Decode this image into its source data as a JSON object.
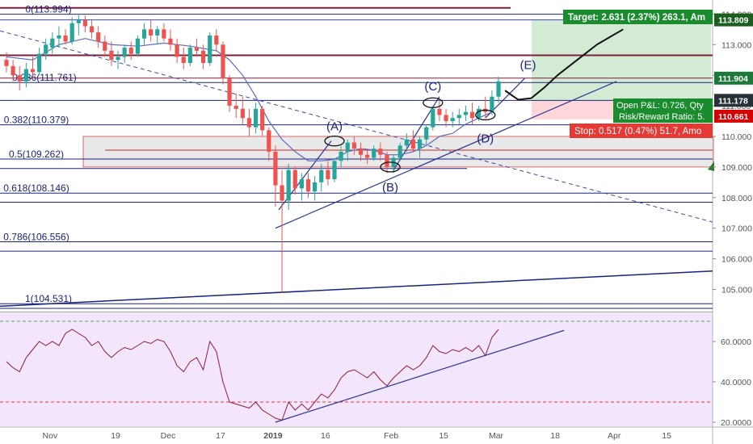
{
  "chart_data": [
    {
      "type": "candlestick",
      "name_shown": "",
      "price_axis": {
        "range": [
          104.3,
          114.3
        ],
        "ticks": [
          105.0,
          106.0,
          107.0,
          108.0,
          109.0,
          110.0,
          111.0,
          112.0,
          113.0,
          114.0
        ],
        "tick_labels": [
          "105.000",
          "106.000",
          "107.000",
          "108.000",
          "109.000",
          "110.000",
          "111.000",
          "112.000",
          "113.000",
          "114.000"
        ]
      },
      "time_axis": {
        "range": [
          0,
          108
        ],
        "ticks": [
          {
            "t": 7,
            "label": "Nov"
          },
          {
            "t": 17,
            "label": "19"
          },
          {
            "t": 25,
            "label": "Dec"
          },
          {
            "t": 33,
            "label": "17"
          },
          {
            "t": 41,
            "label": "2019"
          },
          {
            "t": 49,
            "label": "16"
          },
          {
            "t": 59,
            "label": "Feb"
          },
          {
            "t": 67,
            "label": "15"
          },
          {
            "t": 75,
            "label": "Mar"
          },
          {
            "t": 84,
            "label": "18"
          },
          {
            "t": 93,
            "label": "Apr"
          },
          {
            "t": 101,
            "label": "15"
          }
        ]
      },
      "fib_levels": [
        {
          "ratio": "0",
          "price": 113.994,
          "label": "0(113.994)"
        },
        {
          "ratio": "0.236",
          "price": 111.761,
          "label": "0.236(111.761)"
        },
        {
          "ratio": "0.382",
          "price": 110.379,
          "label": "0.382(110.379)"
        },
        {
          "ratio": "0.5",
          "price": 109.262,
          "label": "0.5(109.262)"
        },
        {
          "ratio": "0.618",
          "price": 108.146,
          "label": "0.618(108.146)"
        },
        {
          "ratio": "0.786",
          "price": 106.556,
          "label": "0.786(106.556)"
        },
        {
          "ratio": "1",
          "price": 104.531,
          "label": "1(104.531)"
        }
      ],
      "wave_labels": [
        "(A)",
        "(B)",
        "(C)",
        "(D)",
        "(E)"
      ],
      "price_tags": [
        {
          "label": "113.809",
          "price": 113.809,
          "color": "#1b5e20"
        },
        {
          "label": "111.904",
          "price": 111.904,
          "color": "#1b7a3a"
        },
        {
          "label": "111.178",
          "price": 111.178,
          "color": "#263238"
        },
        {
          "label": "110.661",
          "price": 110.661,
          "color": "#d50000"
        }
      ],
      "position": {
        "target_text": "Target: 2.631 (2.37%) 263.1, Am",
        "open_pnl_text": "Open P&L: 0.726, Qty",
        "risk_reward_text": "Risk/Reward Ratio: 5.",
        "stop_text": "Stop: 0.517 (0.47%) 51.7, Amo",
        "entry_price": 111.178,
        "target_price": 113.809,
        "stop_price": 110.661
      },
      "candles": [
        [
          0,
          112.5,
          112.75,
          112.1,
          112.3
        ],
        [
          1,
          112.3,
          112.5,
          111.8,
          112.0
        ],
        [
          2,
          112.0,
          112.3,
          111.5,
          111.8
        ],
        [
          3,
          111.8,
          112.4,
          111.6,
          112.2
        ],
        [
          4,
          112.2,
          112.6,
          111.9,
          112.1
        ],
        [
          5,
          112.1,
          112.9,
          112.0,
          112.7
        ],
        [
          6,
          112.7,
          113.2,
          112.5,
          113.0
        ],
        [
          7,
          112.9,
          113.4,
          112.7,
          113.2
        ],
        [
          8,
          113.2,
          113.6,
          112.9,
          113.3
        ],
        [
          9,
          113.3,
          113.5,
          113.0,
          113.1
        ],
        [
          10,
          113.1,
          113.9,
          113.0,
          113.7
        ],
        [
          11,
          113.7,
          114.0,
          113.3,
          113.8
        ],
        [
          12,
          113.8,
          113.95,
          113.4,
          113.6
        ],
        [
          13,
          113.6,
          113.8,
          113.2,
          113.4
        ],
        [
          14,
          113.4,
          113.6,
          112.9,
          113.1
        ],
        [
          15,
          113.1,
          113.3,
          112.6,
          112.8
        ],
        [
          16,
          112.8,
          113.1,
          112.3,
          112.5
        ],
        [
          17,
          112.5,
          112.8,
          112.2,
          112.6
        ],
        [
          18,
          112.6,
          113.0,
          112.4,
          112.9
        ],
        [
          19,
          112.9,
          113.1,
          112.5,
          112.7
        ],
        [
          20,
          112.7,
          113.3,
          112.6,
          113.2
        ],
        [
          21,
          113.2,
          113.7,
          113.0,
          113.5
        ],
        [
          22,
          113.5,
          113.8,
          113.1,
          113.3
        ],
        [
          23,
          113.3,
          113.6,
          113.0,
          113.5
        ],
        [
          24,
          113.5,
          113.7,
          113.1,
          113.2
        ],
        [
          25,
          113.2,
          113.5,
          112.8,
          113.0
        ],
        [
          26,
          113.0,
          113.2,
          112.4,
          112.6
        ],
        [
          27,
          112.6,
          112.9,
          112.2,
          112.4
        ],
        [
          28,
          112.4,
          113.0,
          112.3,
          112.9
        ],
        [
          29,
          112.9,
          113.2,
          112.6,
          112.8
        ],
        [
          30,
          112.8,
          113.0,
          112.2,
          112.4
        ],
        [
          31,
          112.4,
          113.4,
          112.3,
          113.3
        ],
        [
          32,
          113.3,
          113.5,
          112.8,
          113.0
        ],
        [
          33,
          113.0,
          113.1,
          111.7,
          111.9
        ],
        [
          34,
          111.9,
          112.0,
          110.8,
          111.0
        ],
        [
          35,
          111.0,
          111.4,
          110.6,
          110.9
        ],
        [
          36,
          110.9,
          111.3,
          110.4,
          110.6
        ],
        [
          37,
          110.6,
          110.9,
          110.0,
          110.3
        ],
        [
          38,
          110.3,
          111.1,
          110.1,
          110.9
        ],
        [
          39,
          110.9,
          111.0,
          110.0,
          110.2
        ],
        [
          40,
          110.2,
          110.3,
          109.2,
          109.5
        ],
        [
          41,
          109.5,
          109.7,
          107.7,
          108.4
        ],
        [
          42,
          108.4,
          108.9,
          104.9,
          107.9
        ],
        [
          43,
          107.9,
          109.1,
          107.6,
          108.9
        ],
        [
          44,
          108.9,
          109.0,
          108.1,
          108.3
        ],
        [
          45,
          108.3,
          108.8,
          107.9,
          108.6
        ],
        [
          46,
          108.6,
          108.8,
          108.0,
          108.2
        ],
        [
          47,
          108.2,
          108.7,
          107.9,
          108.5
        ],
        [
          48,
          108.5,
          109.1,
          108.2,
          108.9
        ],
        [
          49,
          108.9,
          109.2,
          108.4,
          108.6
        ],
        [
          50,
          108.6,
          109.3,
          108.5,
          109.2
        ],
        [
          51,
          109.2,
          109.7,
          109.0,
          109.5
        ],
        [
          52,
          109.5,
          109.9,
          109.2,
          109.8
        ],
        [
          53,
          109.8,
          110.0,
          109.4,
          109.6
        ],
        [
          54,
          109.6,
          109.8,
          109.2,
          109.4
        ],
        [
          55,
          109.4,
          109.6,
          109.1,
          109.3
        ],
        [
          56,
          109.3,
          109.7,
          109.2,
          109.6
        ],
        [
          57,
          109.6,
          109.8,
          109.2,
          109.4
        ],
        [
          58,
          109.4,
          109.5,
          108.8,
          109.0
        ],
        [
          59,
          109.0,
          109.4,
          108.8,
          109.3
        ],
        [
          60,
          109.3,
          109.8,
          109.2,
          109.7
        ],
        [
          61,
          109.7,
          110.1,
          109.5,
          109.9
        ],
        [
          62,
          109.9,
          110.2,
          109.5,
          109.6
        ],
        [
          63,
          109.6,
          110.0,
          109.3,
          109.9
        ],
        [
          64,
          109.9,
          110.4,
          109.7,
          110.3
        ],
        [
          65,
          110.3,
          111.0,
          110.2,
          110.9
        ],
        [
          66,
          110.9,
          111.2,
          110.5,
          110.7
        ],
        [
          67,
          110.7,
          110.9,
          110.3,
          110.5
        ],
        [
          68,
          110.5,
          110.8,
          110.3,
          110.6
        ],
        [
          69,
          110.6,
          110.9,
          110.4,
          110.7
        ],
        [
          70,
          110.7,
          111.0,
          110.5,
          110.8
        ],
        [
          71,
          110.8,
          111.1,
          110.4,
          110.6
        ],
        [
          72,
          110.6,
          111.0,
          110.5,
          110.9
        ],
        [
          73,
          110.9,
          111.3,
          110.6,
          110.8
        ],
        [
          74,
          110.8,
          111.5,
          110.7,
          111.3
        ],
        [
          75,
          111.3,
          111.95,
          111.1,
          111.8
        ]
      ],
      "moving_average": [
        [
          0,
          112.6
        ],
        [
          4,
          112.5
        ],
        [
          8,
          113.0
        ],
        [
          12,
          113.2
        ],
        [
          16,
          113.0
        ],
        [
          20,
          112.95
        ],
        [
          24,
          113.05
        ],
        [
          28,
          112.95
        ],
        [
          32,
          112.8
        ],
        [
          34,
          112.5
        ],
        [
          36,
          112.0
        ],
        [
          38,
          111.3
        ],
        [
          40,
          110.5
        ],
        [
          42,
          109.9
        ],
        [
          44,
          109.5
        ],
        [
          46,
          109.2
        ],
        [
          48,
          109.2
        ],
        [
          50,
          109.25
        ],
        [
          52,
          109.5
        ],
        [
          54,
          109.6
        ],
        [
          56,
          109.55
        ],
        [
          58,
          109.4
        ],
        [
          60,
          109.4
        ],
        [
          62,
          109.5
        ],
        [
          64,
          109.7
        ],
        [
          66,
          110.0
        ],
        [
          68,
          110.1
        ],
        [
          70,
          110.4
        ],
        [
          72,
          110.6
        ],
        [
          74,
          110.8
        ]
      ],
      "projected_path": [
        [
          76,
          111.5
        ],
        [
          78,
          111.2
        ],
        [
          80,
          111.25
        ],
        [
          82,
          111.6
        ],
        [
          84,
          112.0
        ],
        [
          87,
          112.5
        ],
        [
          90,
          113.0
        ],
        [
          94,
          113.5
        ]
      ]
    },
    {
      "type": "line",
      "name_shown": "",
      "value_axis": {
        "range": [
          18,
          74
        ],
        "ticks": [
          20.0,
          40.0,
          60.0
        ],
        "tick_labels": [
          "20.0000",
          "40.0000",
          "60.0000"
        ]
      },
      "reference_lines": [
        70,
        30
      ],
      "series": [
        {
          "values": [
            [
              0,
              50
            ],
            [
              1,
              47
            ],
            [
              2,
              45
            ],
            [
              3,
              52
            ],
            [
              4,
              56
            ],
            [
              5,
              60
            ],
            [
              6,
              58
            ],
            [
              7,
              60
            ],
            [
              8,
              58
            ],
            [
              9,
              64
            ],
            [
              10,
              66
            ],
            [
              11,
              64
            ],
            [
              12,
              62
            ],
            [
              13,
              58
            ],
            [
              14,
              60
            ],
            [
              15,
              55
            ],
            [
              16,
              52
            ],
            [
              17,
              55
            ],
            [
              18,
              57
            ],
            [
              19,
              56
            ],
            [
              20,
              58
            ],
            [
              21,
              60
            ],
            [
              22,
              59
            ],
            [
              23,
              61
            ],
            [
              24,
              60
            ],
            [
              25,
              55
            ],
            [
              26,
              48
            ],
            [
              27,
              45
            ],
            [
              28,
              50
            ],
            [
              29,
              52
            ],
            [
              30,
              46
            ],
            [
              31,
              60
            ],
            [
              32,
              55
            ],
            [
              33,
              40
            ],
            [
              34,
              30
            ],
            [
              35,
              29
            ],
            [
              36,
              28
            ],
            [
              37,
              27
            ],
            [
              38,
              30
            ],
            [
              39,
              26
            ],
            [
              40,
              24
            ],
            [
              41,
              22
            ],
            [
              42,
              21
            ],
            [
              43,
              30
            ],
            [
              44,
              26
            ],
            [
              45,
              29
            ],
            [
              46,
              26
            ],
            [
              47,
              30
            ],
            [
              48,
              34
            ],
            [
              49,
              32
            ],
            [
              50,
              36
            ],
            [
              51,
              42
            ],
            [
              52,
              45
            ],
            [
              53,
              46
            ],
            [
              54,
              44
            ],
            [
              55,
              42
            ],
            [
              56,
              45
            ],
            [
              57,
              41
            ],
            [
              58,
              38
            ],
            [
              59,
              42
            ],
            [
              60,
              45
            ],
            [
              61,
              48
            ],
            [
              62,
              46
            ],
            [
              63,
              48
            ],
            [
              64,
              52
            ],
            [
              65,
              58
            ],
            [
              66,
              55
            ],
            [
              67,
              54
            ],
            [
              68,
              56
            ],
            [
              69,
              55
            ],
            [
              70,
              57
            ],
            [
              71,
              55
            ],
            [
              72,
              58
            ],
            [
              73,
              53
            ],
            [
              74,
              62
            ],
            [
              75,
              66
            ]
          ]
        }
      ]
    }
  ]
}
